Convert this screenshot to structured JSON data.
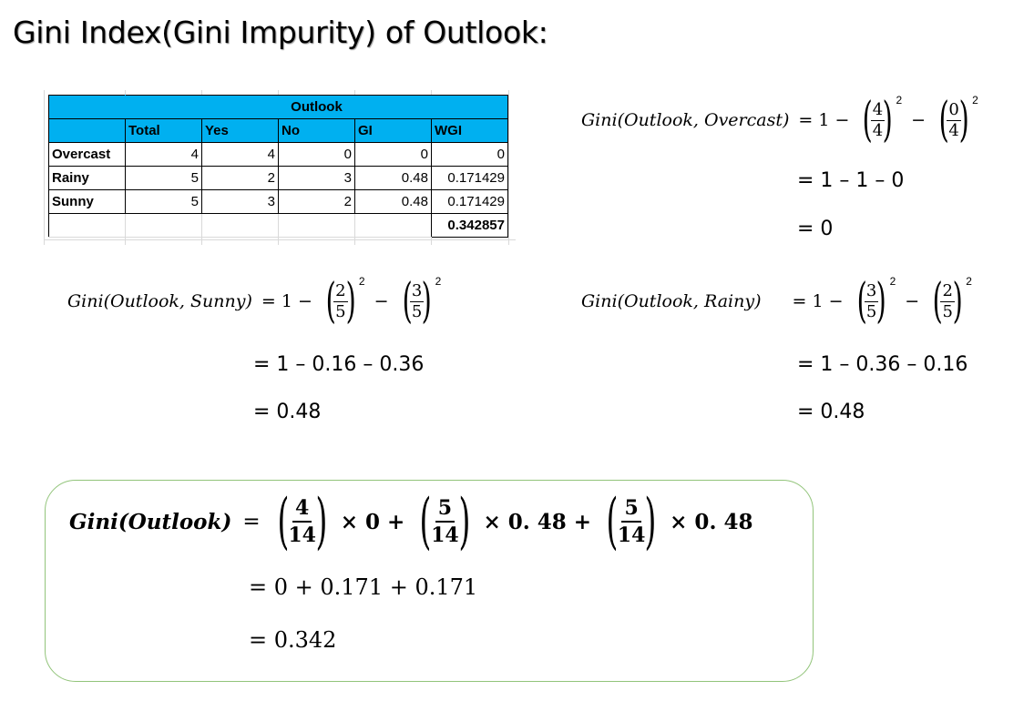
{
  "title": "Gini Index(Gini Impurity) of Outlook:",
  "table": {
    "group_header": "Outlook",
    "columns": [
      "",
      "Total",
      "Yes",
      "No",
      "GI",
      "WGI"
    ],
    "rows": [
      {
        "label": "Overcast",
        "total": "4",
        "yes": "4",
        "no": "0",
        "gi": "0",
        "wgi": "0"
      },
      {
        "label": "Rainy",
        "total": "5",
        "yes": "2",
        "no": "3",
        "gi": "0.48",
        "wgi": "0.171429"
      },
      {
        "label": "Sunny",
        "total": "5",
        "yes": "3",
        "no": "2",
        "gi": "0.48",
        "wgi": "0.171429"
      }
    ],
    "sum": "0.342857"
  },
  "eq_overcast": {
    "lhs_fn": "Gini",
    "lhs_args": "(Outlook, Overcast)",
    "eq": "= 1 −",
    "f1_num": "4",
    "f1_den": "4",
    "f2_num": "0",
    "f2_den": "4",
    "minus": "−",
    "exp": "2",
    "step1": "= 1 – 1 – 0",
    "step2": "= 0"
  },
  "eq_sunny": {
    "lhs_fn": "Gini",
    "lhs_args": "(Outlook, Sunny)",
    "eq": "= 1 −",
    "f1_num": "2",
    "f1_den": "5",
    "f2_num": "3",
    "f2_den": "5",
    "minus": "−",
    "exp": "2",
    "step1": "= 1 – 0.16 – 0.36",
    "step2": "= 0.48"
  },
  "eq_rainy": {
    "lhs_fn": "Gini",
    "lhs_args": "(Outlook, Rainy)",
    "eq": "= 1 −",
    "f1_num": "3",
    "f1_den": "5",
    "f2_num": "2",
    "f2_den": "5",
    "minus": "−",
    "exp": "2",
    "step1": "= 1 – 0.36 – 0.16",
    "step2": "= 0.48"
  },
  "result": {
    "lhs": "Gini(Outlook)",
    "eq": "=",
    "t1_num": "4",
    "t1_den": "14",
    "t1_mult": "× 0 +",
    "t2_num": "5",
    "t2_den": "14",
    "t2_mult": "× 0. 48 +",
    "t3_num": "5",
    "t3_den": "14",
    "t3_mult": "× 0. 48",
    "step1": "= 0 + 0.171 + 0.171",
    "step2": "= 0.342"
  }
}
